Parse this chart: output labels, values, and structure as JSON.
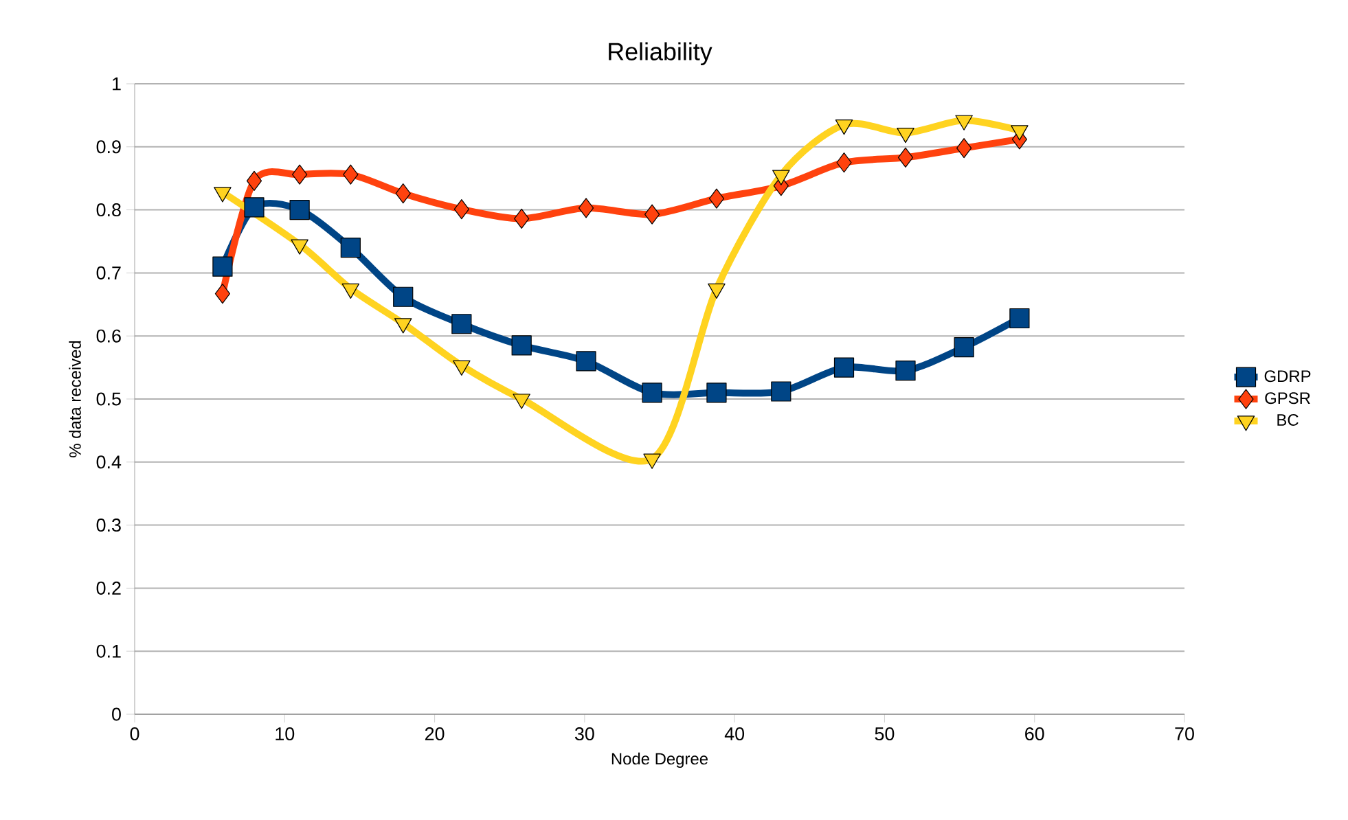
{
  "chart_data": {
    "type": "line",
    "title": "Reliability",
    "xlabel": "Node Degree",
    "ylabel": "% data received",
    "x": [
      5.86,
      7.97,
      11.0,
      14.4,
      17.9,
      21.8,
      25.8,
      30.1,
      34.5,
      38.8,
      43.1,
      47.3,
      51.4,
      55.3,
      59.0
    ],
    "series": [
      {
        "name": "GDRP",
        "color": "#004586",
        "marker": "square",
        "values": [
          0.71,
          0.804,
          0.8,
          0.74,
          0.662,
          0.619,
          0.585,
          0.56,
          0.51,
          0.51,
          0.512,
          0.55,
          0.545,
          0.582,
          0.628
        ]
      },
      {
        "name": "GPSR",
        "color": "#ff420e",
        "marker": "diamond",
        "values": [
          0.667,
          0.846,
          0.856,
          0.856,
          0.826,
          0.801,
          0.786,
          0.803,
          0.793,
          0.818,
          0.838,
          0.875,
          0.883,
          0.898,
          0.912
        ]
      },
      {
        "name": "BC",
        "color": "#ffd320",
        "marker": "triangle",
        "x": [
          5.86,
          11.0,
          14.4,
          17.9,
          21.8,
          25.8,
          34.5,
          38.8,
          43.1,
          47.3,
          51.4,
          55.3,
          59.0
        ],
        "values": [
          0.828,
          0.745,
          0.675,
          0.62,
          0.553,
          0.5,
          0.405,
          0.675,
          0.855,
          0.935,
          0.922,
          0.942,
          0.926
        ]
      }
    ],
    "xlim": [
      0,
      70
    ],
    "xticks": [
      0,
      10,
      20,
      30,
      40,
      50,
      60,
      70
    ],
    "ylim": [
      0,
      1
    ],
    "yticks": [
      0,
      0.1,
      0.2,
      0.3,
      0.4,
      0.5,
      0.6,
      0.7,
      0.8,
      0.9,
      1
    ],
    "grid": "y",
    "legend": "right",
    "line_style": "solid"
  }
}
